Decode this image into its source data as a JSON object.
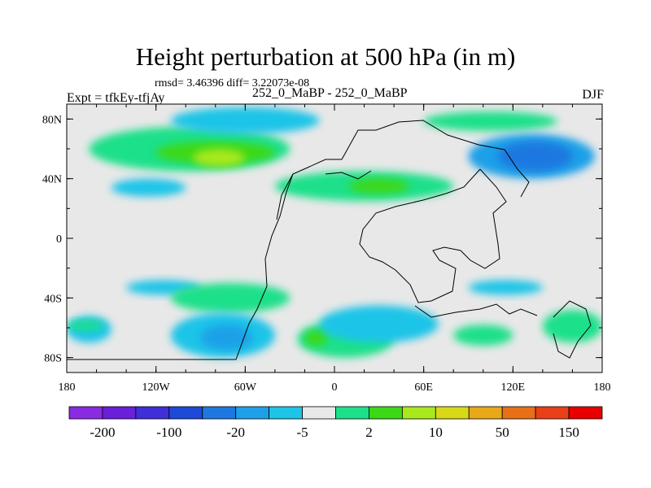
{
  "chart_data": {
    "type": "heatmap",
    "title": "Height perturbation at 500 hPa (in m)",
    "stats_text": "rmsd= 3.46396 diff= 3.22073e-08",
    "left_label": "Expt = tfkEy-tfjAy",
    "center_label": "252_0_MaBP - 252_0_MaBP",
    "right_label": "DJF",
    "x_axis": {
      "range": [
        -180,
        180
      ],
      "ticks": [
        -180,
        -120,
        -60,
        0,
        60,
        120,
        180
      ],
      "tick_labels": [
        "180",
        "120W",
        "60W",
        "0",
        "60E",
        "120E",
        "180"
      ]
    },
    "y_axis": {
      "range": [
        -90,
        90
      ],
      "ticks": [
        80,
        40,
        0,
        -40,
        -80
      ],
      "tick_labels": [
        "80N",
        "40N",
        "0",
        "40S",
        "80S"
      ]
    },
    "colorbar": {
      "colors": [
        "#8a2be2",
        "#6a1fd8",
        "#3f2fd8",
        "#1e4ad8",
        "#1e78e0",
        "#1ea0e8",
        "#1ec4e8",
        "#e8e8e8",
        "#1ee08a",
        "#3cd818",
        "#a8e81c",
        "#d8d818",
        "#e8a818",
        "#e87018",
        "#e84018",
        "#e80000"
      ],
      "labels": [
        "-200",
        "-100",
        "-20",
        "-5",
        "2",
        "10",
        "50",
        "150"
      ]
    },
    "anomaly_regions": [
      {
        "level": "positive_weak",
        "color": "#1ee08a",
        "lon": [
          -165,
          -30
        ],
        "lat": [
          45,
          75
        ]
      },
      {
        "level": "positive_moderate",
        "color": "#3cd818",
        "lon": [
          -120,
          -40
        ],
        "lat": [
          50,
          65
        ]
      },
      {
        "level": "positive_strong",
        "color": "#a8e81c",
        "lon": [
          -95,
          -60
        ],
        "lat": [
          48,
          60
        ]
      },
      {
        "level": "positive_weak",
        "color": "#1ee08a",
        "lon": [
          -40,
          80
        ],
        "lat": [
          25,
          45
        ]
      },
      {
        "level": "positive_moderate",
        "color": "#3cd818",
        "lon": [
          10,
          50
        ],
        "lat": [
          30,
          40
        ]
      },
      {
        "level": "positive_weak",
        "color": "#1ee08a",
        "lon": [
          60,
          150
        ],
        "lat": [
          72,
          85
        ]
      },
      {
        "level": "negative_weak",
        "color": "#1ec4e8",
        "lon": [
          -110,
          -10
        ],
        "lat": [
          70,
          88
        ]
      },
      {
        "level": "negative_moderate",
        "color": "#1ea0e8",
        "lon": [
          90,
          175
        ],
        "lat": [
          40,
          70
        ]
      },
      {
        "level": "negative_strong",
        "color": "#1e78e0",
        "lon": [
          110,
          160
        ],
        "lat": [
          45,
          65
        ]
      },
      {
        "level": "negative_weak",
        "color": "#1ec4e8",
        "lon": [
          -150,
          -100
        ],
        "lat": [
          28,
          40
        ]
      },
      {
        "level": "negative_weak",
        "color": "#1ec4e8",
        "lon": [
          -140,
          -90
        ],
        "lat": [
          -38,
          -28
        ]
      },
      {
        "level": "positive_weak",
        "color": "#1ee08a",
        "lon": [
          -110,
          -30
        ],
        "lat": [
          -50,
          -30
        ]
      },
      {
        "level": "negative_weak",
        "color": "#1ec4e8",
        "lon": [
          -110,
          -40
        ],
        "lat": [
          -80,
          -50
        ]
      },
      {
        "level": "negative_moderate",
        "color": "#1ea0e8",
        "lon": [
          -90,
          -55
        ],
        "lat": [
          -75,
          -58
        ]
      },
      {
        "level": "positive_weak",
        "color": "#1ee08a",
        "lon": [
          -25,
          40
        ],
        "lat": [
          -80,
          -55
        ]
      },
      {
        "level": "positive_moderate",
        "color": "#3cd818",
        "lon": [
          -20,
          -5
        ],
        "lat": [
          -72,
          -62
        ]
      },
      {
        "level": "negative_weak",
        "color": "#1ec4e8",
        "lon": [
          -10,
          70
        ],
        "lat": [
          -70,
          -45
        ]
      },
      {
        "level": "positive_weak",
        "color": "#1ee08a",
        "lon": [
          80,
          120
        ],
        "lat": [
          -72,
          -58
        ]
      },
      {
        "level": "positive_weak",
        "color": "#1ee08a",
        "lon": [
          140,
          180
        ],
        "lat": [
          -70,
          -48
        ]
      },
      {
        "level": "negative_weak",
        "color": "#1ec4e8",
        "lon": [
          -180,
          -150
        ],
        "lat": [
          -70,
          -52
        ]
      },
      {
        "level": "positive_weak",
        "color": "#1ee08a",
        "lon": [
          -180,
          -155
        ],
        "lat": [
          -62,
          -55
        ]
      },
      {
        "level": "negative_weak",
        "color": "#1ec4e8",
        "lon": [
          90,
          140
        ],
        "lat": [
          -38,
          -28
        ]
      }
    ]
  }
}
